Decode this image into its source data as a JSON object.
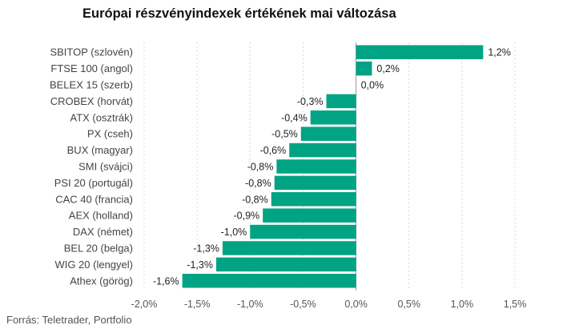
{
  "title": "Európai részvényindexek értékének mai változása",
  "source": "Forrás: Teletrader, Portfolio",
  "colors": {
    "bar": "#00a383",
    "grid": "#d9d9d9"
  },
  "chart_data": {
    "type": "bar",
    "orientation": "horizontal",
    "title": "Európai részvényindexek értékének mai változása",
    "categories": [
      "SBITOP (szlovén)",
      "FTSE 100 (angol)",
      "BELEX 15 (szerb)",
      "CROBEX (horvát)",
      "ATX (osztrák)",
      "PX (cseh)",
      "BUX (magyar)",
      "SMI (svájci)",
      "PSI 20 (portugál)",
      "CAC 40 (francia)",
      "AEX (holland)",
      "DAX (német)",
      "BEL 20 (belga)",
      "WIG 20 (lengyel)",
      "Athex (görög)"
    ],
    "values": [
      1.2,
      0.15,
      0.0,
      -0.28,
      -0.43,
      -0.52,
      -0.63,
      -0.75,
      -0.77,
      -0.8,
      -0.88,
      -1.0,
      -1.26,
      -1.32,
      -1.64
    ],
    "labels": [
      "1,2%",
      "0,2%",
      "0,0%",
      "-0,3%",
      "-0,4%",
      "-0,5%",
      "-0,6%",
      "-0,8%",
      "-0,8%",
      "-0,8%",
      "-0,9%",
      "-1,0%",
      "-1,3%",
      "-1,3%",
      "-1,6%"
    ],
    "xlim": [
      -2.0,
      1.5
    ],
    "xticks": [
      -2.0,
      -1.5,
      -1.0,
      -0.5,
      0.0,
      0.5,
      1.0,
      1.5
    ],
    "xtick_labels": [
      "-2,0%",
      "-1,5%",
      "-1,0%",
      "-0,5%",
      "0,0%",
      "0,5%",
      "1,0%",
      "1,5%"
    ],
    "grid": "vertical",
    "legend": "none"
  }
}
